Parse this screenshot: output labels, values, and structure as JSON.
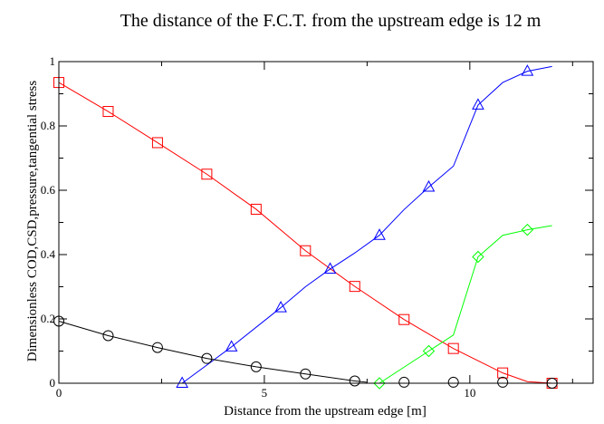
{
  "chart_data": {
    "type": "line",
    "title": "The distance of the F.C.T. from the upstream edge is 12 m",
    "xlabel": "Distance from the upstream edge [m]",
    "ylabel": "Dimensionless COD,CSD,pressure,tangential stress",
    "xlim": [
      0,
      13
    ],
    "ylim": [
      0,
      1
    ],
    "xticks": [
      0,
      5,
      10
    ],
    "yticks": [
      0,
      0.2,
      0.4,
      0.6,
      0.8,
      1
    ],
    "xtick_labels": [
      "0",
      "5",
      "10"
    ],
    "ytick_labels": [
      "0",
      "0.2",
      "0.4",
      "0.6",
      "0.8",
      "1"
    ],
    "grid": false,
    "legend": "none",
    "series": [
      {
        "color": "#ff0000",
        "marker": "square",
        "line": [
          [
            0,
            0.935
          ],
          [
            1.2,
            0.845
          ],
          [
            2.4,
            0.748
          ],
          [
            3.6,
            0.65
          ],
          [
            4.8,
            0.541
          ],
          [
            6.0,
            0.412
          ],
          [
            7.2,
            0.301
          ],
          [
            8.4,
            0.198
          ],
          [
            9.6,
            0.108
          ],
          [
            10.8,
            0.032
          ],
          [
            11.4,
            0.005
          ],
          [
            12.0,
            0.0
          ]
        ],
        "markers": [
          [
            0,
            0.935
          ],
          [
            1.2,
            0.845
          ],
          [
            2.4,
            0.748
          ],
          [
            3.6,
            0.65
          ],
          [
            4.8,
            0.541
          ],
          [
            6.0,
            0.412
          ],
          [
            7.2,
            0.301
          ],
          [
            8.4,
            0.198
          ],
          [
            9.6,
            0.108
          ],
          [
            10.8,
            0.032
          ],
          [
            12.0,
            0.0
          ]
        ]
      },
      {
        "color": "#0000ff",
        "marker": "triangle",
        "line": [
          [
            3.0,
            0.0
          ],
          [
            4.2,
            0.113
          ],
          [
            5.4,
            0.235
          ],
          [
            6.0,
            0.3
          ],
          [
            6.6,
            0.355
          ],
          [
            7.2,
            0.405
          ],
          [
            7.8,
            0.46
          ],
          [
            8.4,
            0.54
          ],
          [
            9.0,
            0.61
          ],
          [
            9.6,
            0.675
          ],
          [
            10.2,
            0.865
          ],
          [
            10.8,
            0.935
          ],
          [
            11.4,
            0.97
          ],
          [
            12.0,
            0.985
          ]
        ],
        "markers": [
          [
            3.0,
            0.0
          ],
          [
            4.2,
            0.113
          ],
          [
            5.4,
            0.235
          ],
          [
            6.6,
            0.355
          ],
          [
            7.8,
            0.46
          ],
          [
            9.0,
            0.61
          ],
          [
            10.2,
            0.865
          ],
          [
            11.4,
            0.97
          ]
        ]
      },
      {
        "color": "#00ff00",
        "marker": "diamond",
        "line": [
          [
            7.8,
            0.0
          ],
          [
            8.4,
            0.05
          ],
          [
            9.0,
            0.1
          ],
          [
            9.6,
            0.15
          ],
          [
            10.2,
            0.393
          ],
          [
            10.8,
            0.46
          ],
          [
            11.4,
            0.477
          ],
          [
            12.0,
            0.49
          ]
        ],
        "markers": [
          [
            7.8,
            0.0
          ],
          [
            9.0,
            0.1
          ],
          [
            10.2,
            0.393
          ],
          [
            11.4,
            0.477
          ]
        ]
      },
      {
        "color": "#000000",
        "marker": "circle",
        "line": [
          [
            0,
            0.193
          ],
          [
            1.2,
            0.148
          ],
          [
            2.4,
            0.111
          ],
          [
            3.6,
            0.077
          ],
          [
            4.8,
            0.051
          ],
          [
            6.0,
            0.029
          ],
          [
            7.2,
            0.007
          ],
          [
            7.5,
            0.003
          ]
        ],
        "markers": [
          [
            0,
            0.193
          ],
          [
            1.2,
            0.148
          ],
          [
            2.4,
            0.111
          ],
          [
            3.6,
            0.077
          ],
          [
            4.8,
            0.051
          ],
          [
            6.0,
            0.029
          ],
          [
            7.2,
            0.007
          ],
          [
            8.4,
            0.003
          ],
          [
            9.6,
            0.003
          ],
          [
            10.8,
            0.003
          ],
          [
            12.0,
            0.0
          ]
        ]
      }
    ]
  }
}
